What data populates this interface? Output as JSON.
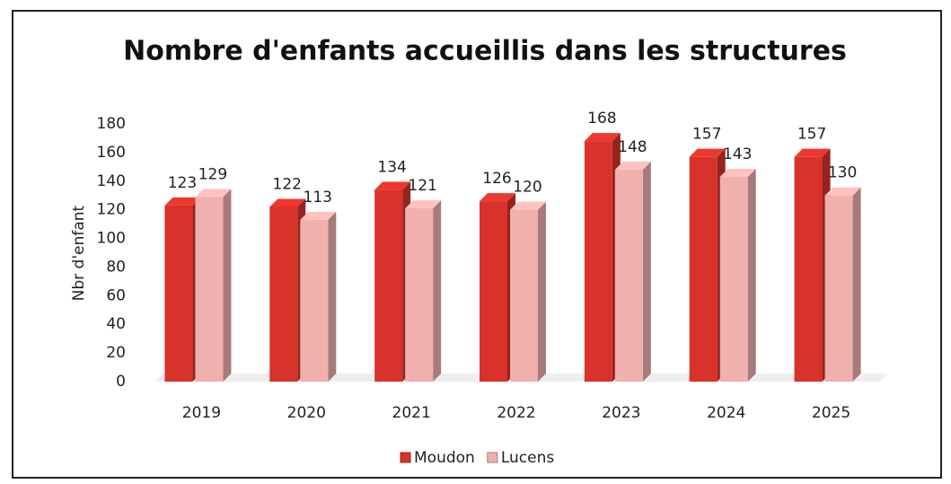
{
  "chart_data": {
    "type": "bar3d",
    "title": "Nombre d'enfants accueillis dans les structures",
    "y_label": "Nbr d'enfant",
    "categories": [
      "2019",
      "2020",
      "2021",
      "2022",
      "2023",
      "2024",
      "2025"
    ],
    "series": [
      {
        "name": "Moudon",
        "color": "#d8322a",
        "values": [
          123,
          122,
          134,
          126,
          168,
          157,
          157
        ]
      },
      {
        "name": "Lucens",
        "color": "#efb0ae",
        "values": [
          129,
          113,
          121,
          120,
          148,
          143,
          130
        ]
      }
    ],
    "ylim": [
      0,
      180
    ],
    "yticks": [
      0,
      20,
      40,
      60,
      80,
      100,
      120,
      140,
      160,
      180
    ],
    "grid": false,
    "legend": "bottom"
  }
}
